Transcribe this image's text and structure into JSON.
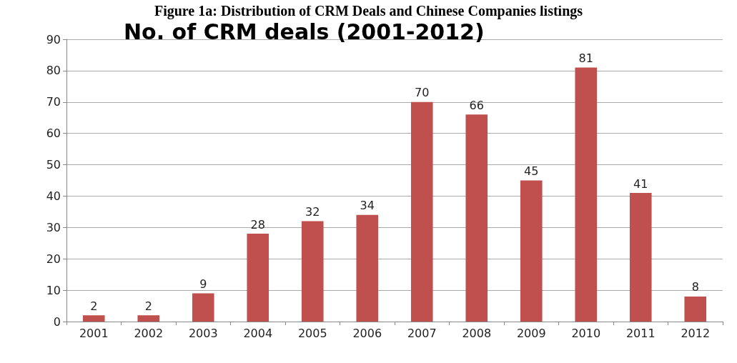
{
  "chart_data": {
    "type": "bar",
    "title": "No. of CRM deals (2001-2012)",
    "annotations": [
      "Figure 1a: Distribution of CRM Deals and Chinese Companies listings"
    ],
    "categories": [
      "2001",
      "2002",
      "2003",
      "2004",
      "2005",
      "2006",
      "2007",
      "2008",
      "2009",
      "2010",
      "2011",
      "2012"
    ],
    "values": [
      2,
      2,
      9,
      28,
      32,
      34,
      70,
      66,
      45,
      81,
      41,
      8
    ],
    "color": "#c0504d",
    "ylim": [
      0,
      90
    ],
    "yticks": [
      0,
      10,
      20,
      30,
      40,
      50,
      60,
      70,
      80,
      90
    ],
    "grid": "y",
    "data_labels": true
  }
}
